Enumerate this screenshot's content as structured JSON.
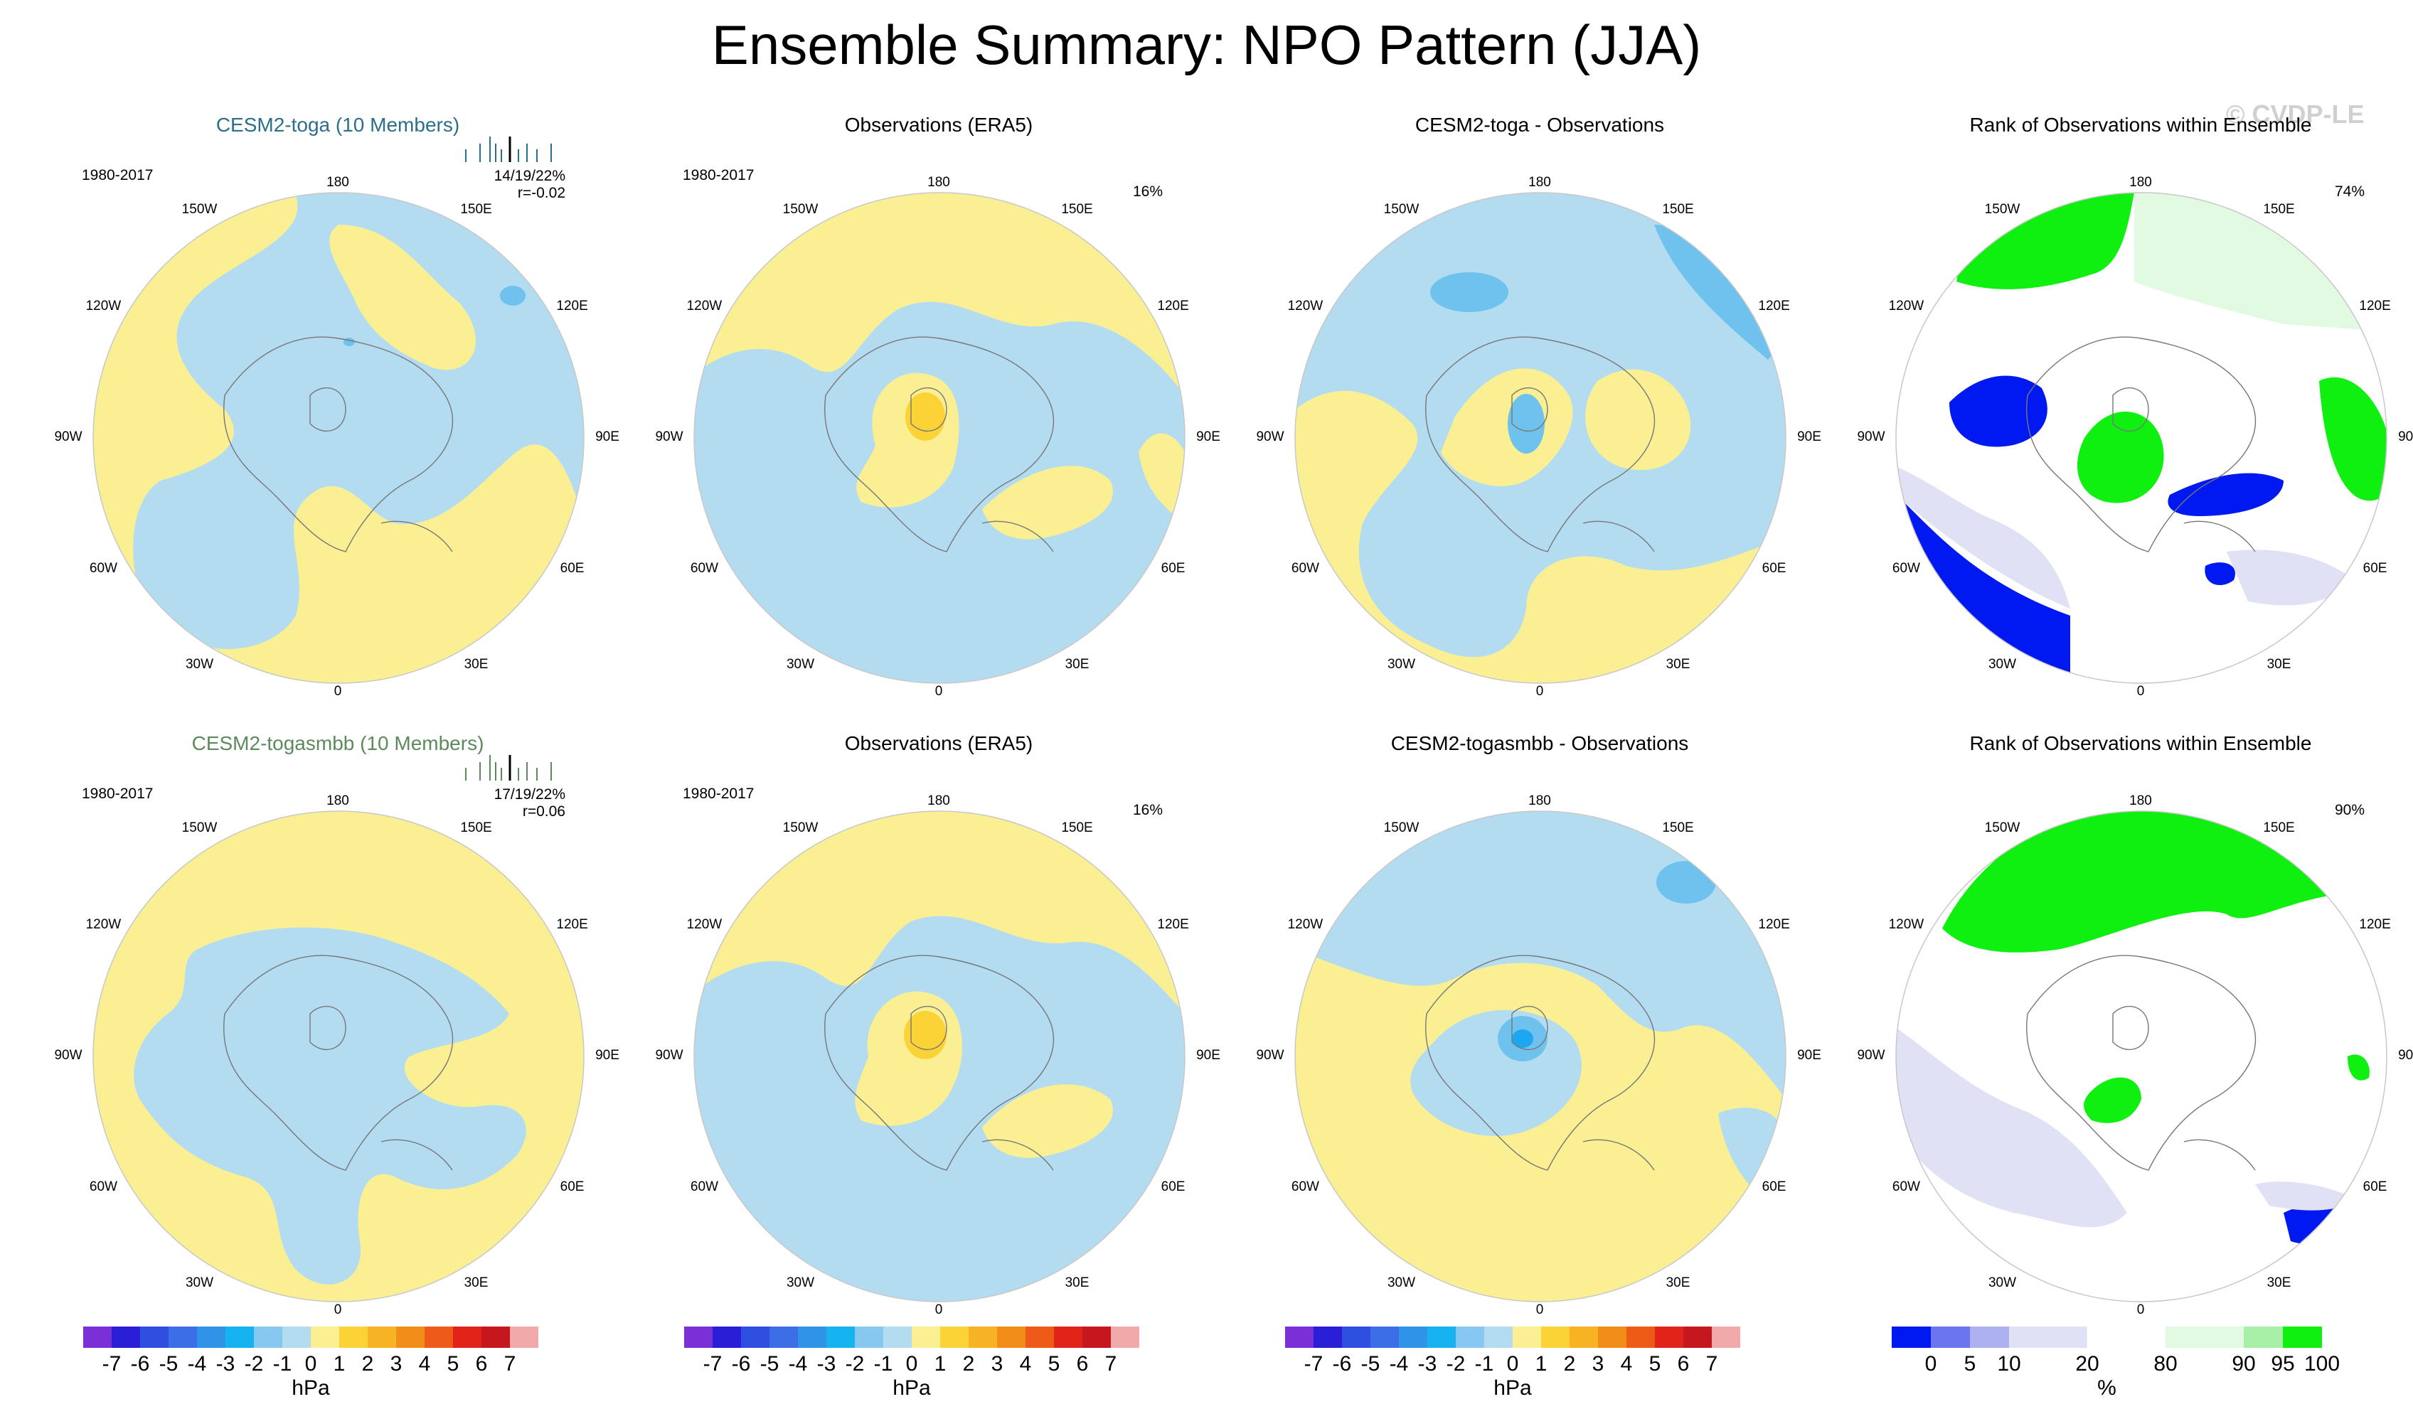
{
  "title": "Ensemble Summary: NPO Pattern (JJA)",
  "watermark": "© CVDP-LE",
  "lon_labels": {
    "top": "180",
    "tr1": "150E",
    "tr2": "120E",
    "right": "90E",
    "br2": "60E",
    "br1": "30E",
    "bottom": "0",
    "bl1": "30W",
    "bl2": "60W",
    "left": "90W",
    "tl2": "120W",
    "tl1": "150W"
  },
  "panels": [
    {
      "title": "CESM2-toga (10 Members)",
      "title_color": "#2c6f8a",
      "period": "1980-2017",
      "stats": "14/19/22%",
      "corr": "r=-0.02",
      "pct": "",
      "kind": "ens"
    },
    {
      "title": "Observations (ERA5)",
      "title_color": "#000000",
      "period": "1980-2017",
      "stats": "",
      "corr": "",
      "pct": "16%",
      "kind": "obs"
    },
    {
      "title": "CESM2-toga - Observations",
      "title_color": "#000000",
      "period": "",
      "stats": "",
      "corr": "",
      "pct": "",
      "kind": "diff"
    },
    {
      "title": "Rank of Observations within Ensemble",
      "title_color": "#000000",
      "period": "",
      "stats": "",
      "corr": "",
      "pct": "74%",
      "kind": "rank"
    },
    {
      "title": "CESM2-togasmbb (10 Members)",
      "title_color": "#5d8a5d",
      "period": "1980-2017",
      "stats": "17/19/22%",
      "corr": "r=0.06",
      "pct": "",
      "kind": "ens"
    },
    {
      "title": "Observations (ERA5)",
      "title_color": "#000000",
      "period": "1980-2017",
      "stats": "",
      "corr": "",
      "pct": "16%",
      "kind": "obs"
    },
    {
      "title": "CESM2-togasmbb - Observations",
      "title_color": "#000000",
      "period": "",
      "stats": "",
      "corr": "",
      "pct": "",
      "kind": "diff"
    },
    {
      "title": "Rank of Observations within Ensemble",
      "title_color": "#000000",
      "period": "",
      "stats": "",
      "corr": "",
      "pct": "90%",
      "kind": "rank"
    }
  ],
  "chart_data": {
    "type": "heatmap",
    "projection": "north polar stereographic",
    "colorbar_hpa": {
      "units": "hPa",
      "labels": [
        "-7",
        "-6",
        "-5",
        "-4",
        "-3",
        "-2",
        "-1",
        "0",
        "1",
        "2",
        "3",
        "4",
        "5",
        "6",
        "7"
      ],
      "colors": [
        "#7b2fd6",
        "#2a1fd6",
        "#2f4fe0",
        "#3c6ee8",
        "#2f93e6",
        "#17b2f0",
        "#86c8ef",
        "#b3dcf1",
        "#fbef94",
        "#fbd336",
        "#f7b324",
        "#f38d1a",
        "#ee5b19",
        "#e2231a",
        "#c6171f",
        "#f2a9a9"
      ]
    },
    "colorbar_rank": {
      "units": "%",
      "labels": [
        "0",
        "5",
        "10",
        "20",
        "80",
        "90",
        "95",
        "100"
      ],
      "colors": [
        "#0019f0",
        "#6a75ee",
        "#aeb1f0",
        "#e1e1f6",
        "#ffffff",
        "#e1fae1",
        "#a8efa8",
        "#10f010"
      ]
    }
  }
}
